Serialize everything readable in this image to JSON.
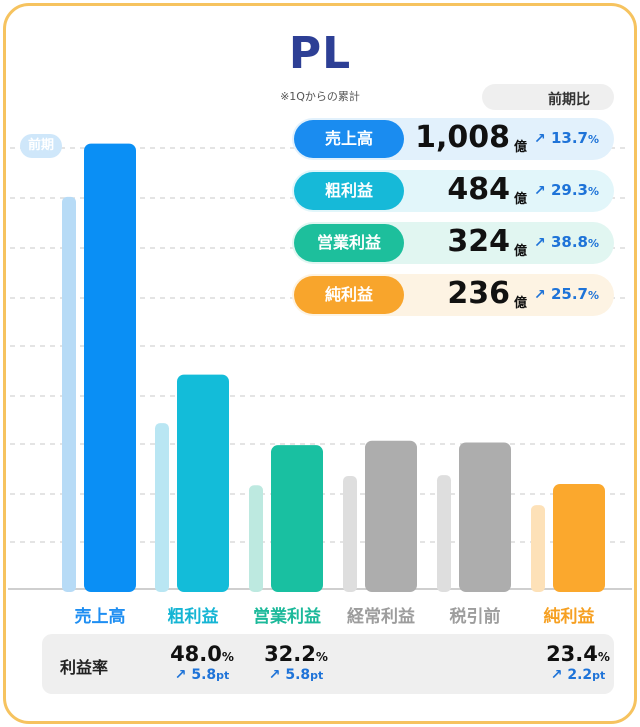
{
  "header": {
    "title": "PL",
    "subtitle": "※1Qからの累計"
  },
  "legend": {
    "label": "前期比",
    "up_color": "#1e73d8",
    "down_color": "#e0304a",
    "flat_color": "#444444"
  },
  "prev_label": "前期",
  "summary": [
    {
      "label": "売上高",
      "value": "1,008",
      "unit": "億",
      "growth": "13.7",
      "color": "#1a8cf0",
      "bg": "#e2f1fc"
    },
    {
      "label": "粗利益",
      "value": "484",
      "unit": "億",
      "growth": "29.3",
      "color": "#16b9d8",
      "bg": "#e2f6fa"
    },
    {
      "label": "営業利益",
      "value": "324",
      "unit": "億",
      "growth": "38.8",
      "color": "#1dbf9c",
      "bg": "#e1f6f1"
    },
    {
      "label": "純利益",
      "value": "236",
      "unit": "億",
      "growth": "25.7",
      "color": "#f8a52c",
      "bg": "#fdf3e3"
    }
  ],
  "percent_unit": "%",
  "chart_data": {
    "type": "bar",
    "categories": [
      "売上高",
      "粗利益",
      "営業利益",
      "経常利益",
      "税引前",
      "純利益"
    ],
    "series": [
      {
        "name": "前期",
        "values": [
          887,
          374,
          233,
          254,
          256,
          188
        ]
      },
      {
        "values": [
          1008,
          484,
          324,
          334,
          330,
          236
        ]
      }
    ],
    "colors": {
      "current": [
        "#0a8ff5",
        "#13bcd9",
        "#19c0a1",
        "#adadad",
        "#adadad",
        "#fba82d"
      ],
      "previous": [
        "#b7dbf6",
        "#b9e6f3",
        "#bde9e0",
        "#dedede",
        "#dedede",
        "#fde1b8"
      ],
      "label": [
        "#1e8ef2",
        "#15b5d4",
        "#1cb99a",
        "#9d9d9d",
        "#9d9d9d",
        "#f6a022"
      ]
    },
    "ylim": [
      0,
      1100
    ],
    "grid": true
  },
  "margin": {
    "title": "利益率",
    "items": [
      {
        "category": "売上高",
        "value": "",
        "change": ""
      },
      {
        "category": "粗利益",
        "value": "48.0",
        "change": "5.8"
      },
      {
        "category": "営業利益",
        "value": "32.2",
        "change": "5.8"
      },
      {
        "category": "経常利益",
        "value": "",
        "change": ""
      },
      {
        "category": "税引前",
        "value": "",
        "change": ""
      },
      {
        "category": "純利益",
        "value": "23.4",
        "change": "2.2"
      }
    ],
    "change_unit": "pt"
  }
}
